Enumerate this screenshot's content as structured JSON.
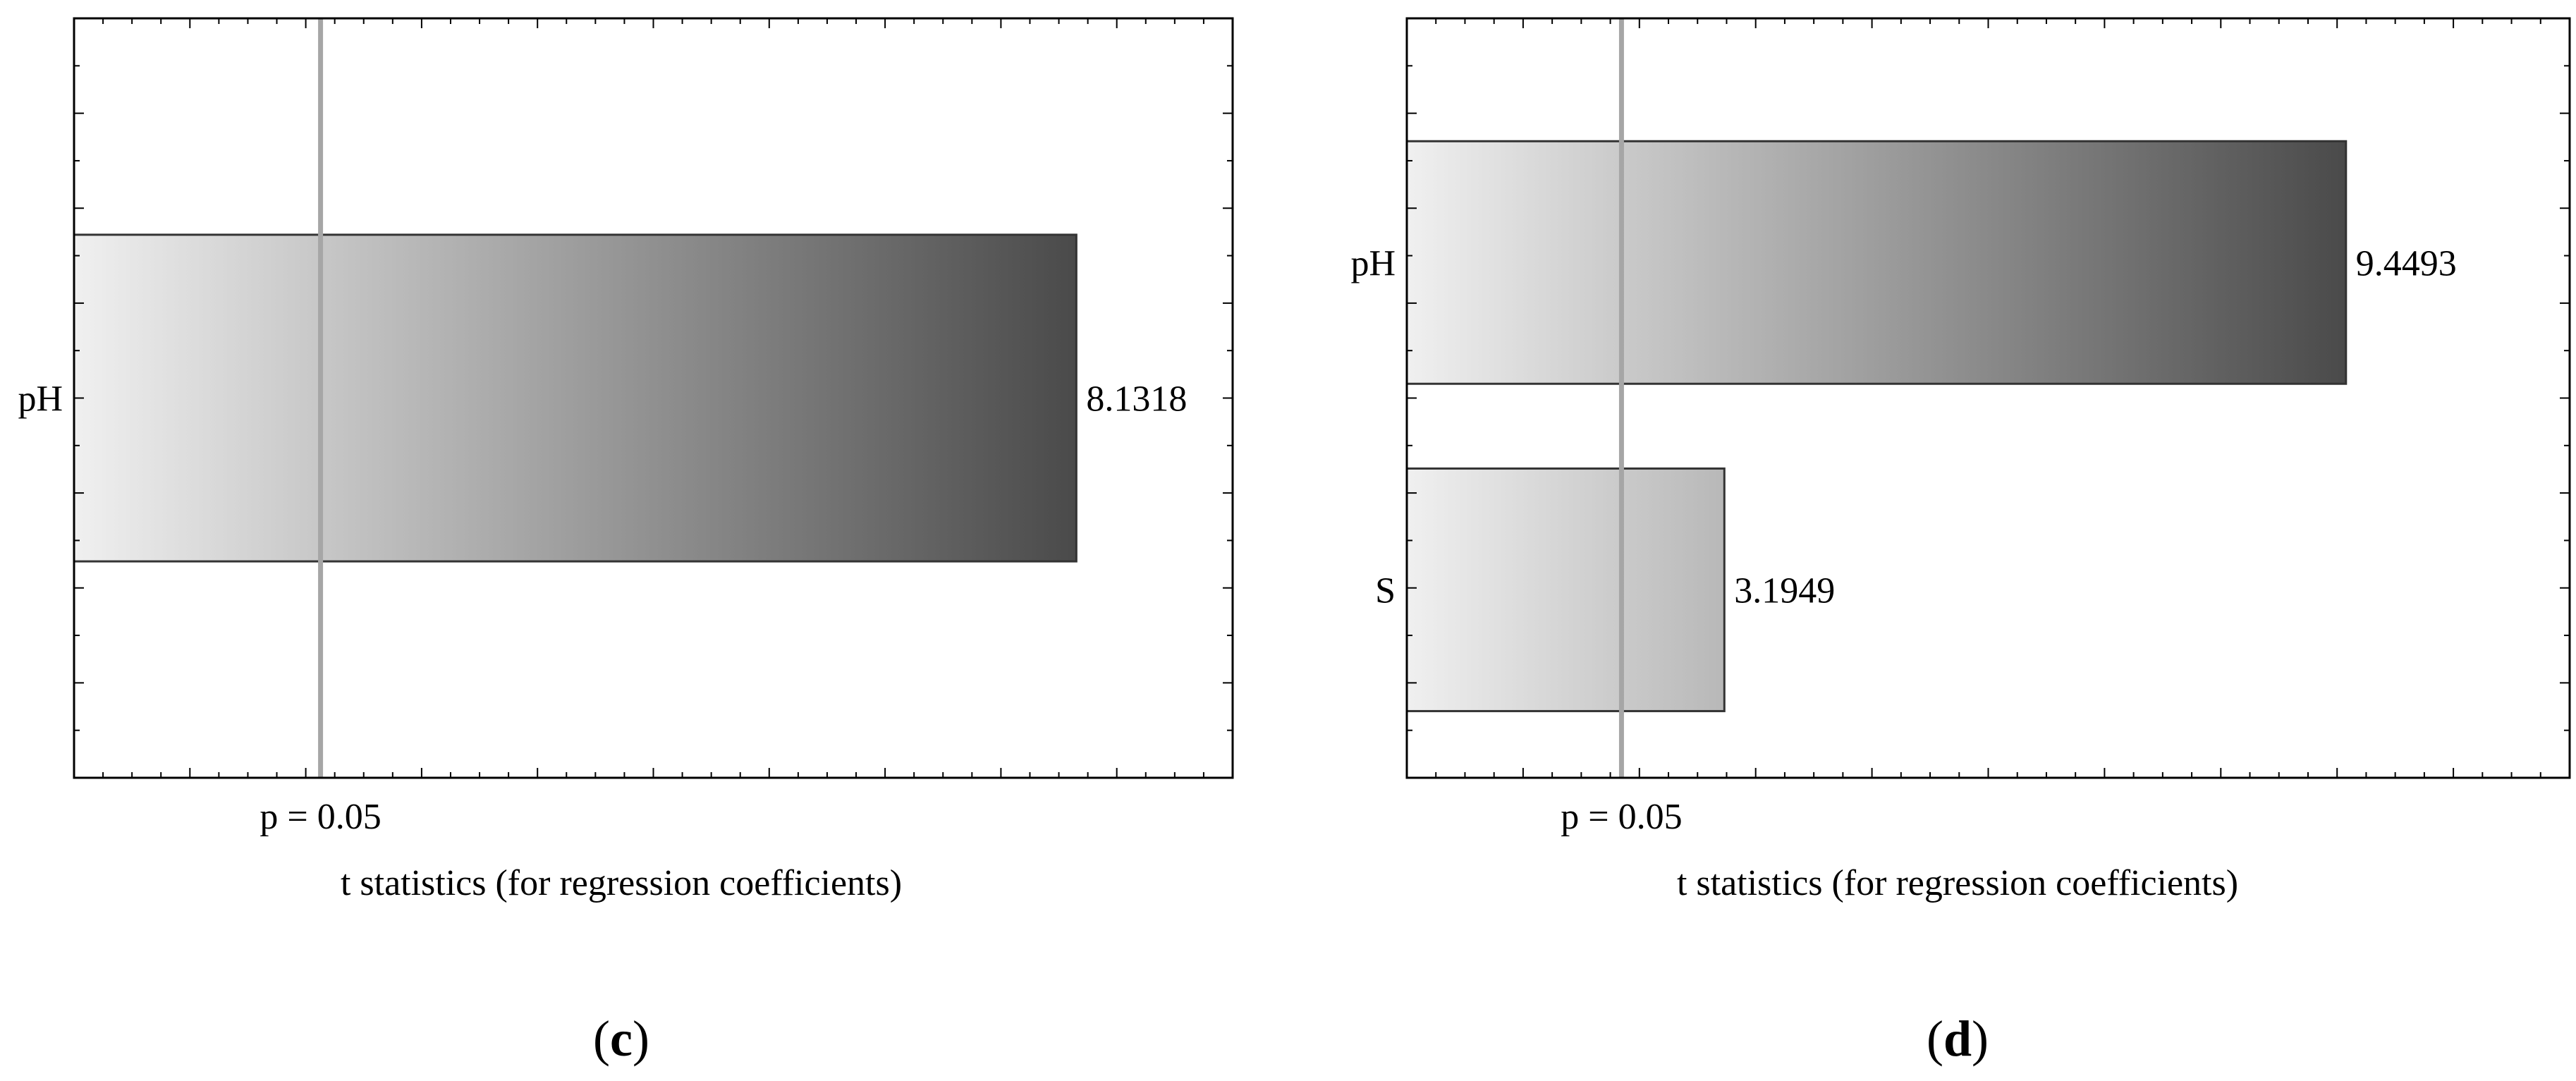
{
  "chart_data": [
    {
      "type": "bar",
      "orientation": "horizontal",
      "panel_label": "c",
      "categories": [
        "pH"
      ],
      "values": [
        8.1318
      ],
      "data_labels": [
        "8.1318"
      ],
      "xlabel": "t statistics (for regression coefficients)",
      "ylabel": "",
      "xlim": [
        0,
        9.4
      ],
      "reference_line": {
        "value": 2.0,
        "label": "p = 0.05"
      },
      "grid": false,
      "bar_fill": "gradient #f0f0f0 to #4a4a4a"
    },
    {
      "type": "bar",
      "orientation": "horizontal",
      "panel_label": "d",
      "categories": [
        "pH",
        "S"
      ],
      "values": [
        9.4493,
        3.1949
      ],
      "data_labels": [
        "9.4493",
        "3.1949"
      ],
      "xlabel": "t statistics (for regression coefficients)",
      "ylabel": "",
      "xlim": [
        0,
        11.7
      ],
      "reference_line": {
        "value": 2.16,
        "label": "p = 0.05"
      },
      "grid": false,
      "bar_fill": "gradient #f0f0f0 to #4a4a4a"
    }
  ],
  "colors": {
    "frame": "#000000",
    "reference_line": "#a6a6a6",
    "bar_start": "#f0f0f0",
    "bar_end": "#4a4a4a",
    "bar_stroke": "#333333"
  }
}
